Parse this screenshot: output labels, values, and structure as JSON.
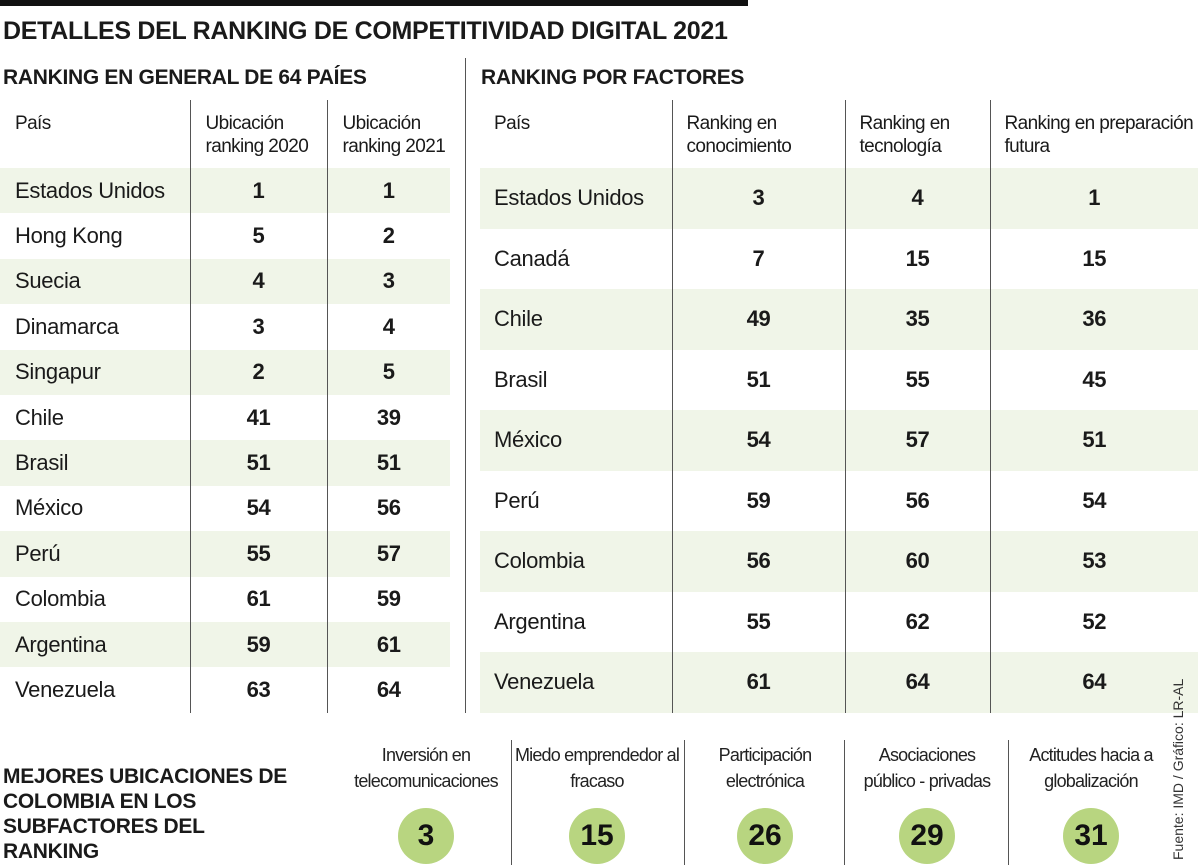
{
  "title": "DETALLES DEL RANKING DE COMPETITIVIDAD DIGITAL 2021",
  "general": {
    "title": "RANKING EN GENERAL DE 64 PAÍES",
    "headers": [
      "País",
      "Ubicación ranking 2020",
      "Ubicación ranking 2021"
    ],
    "rows": [
      [
        "Estados Unidos",
        "1",
        "1"
      ],
      [
        "Hong Kong",
        "5",
        "2"
      ],
      [
        "Suecia",
        "4",
        "3"
      ],
      [
        "Dinamarca",
        "3",
        "4"
      ],
      [
        "Singapur",
        "2",
        "5"
      ],
      [
        "Chile",
        "41",
        "39"
      ],
      [
        "Brasil",
        "51",
        "51"
      ],
      [
        "México",
        "54",
        "56"
      ],
      [
        "Perú",
        "55",
        "57"
      ],
      [
        "Colombia",
        "61",
        "59"
      ],
      [
        "Argentina",
        "59",
        "61"
      ],
      [
        "Venezuela",
        "63",
        "64"
      ]
    ]
  },
  "factores": {
    "title": "RANKING POR FACTORES",
    "headers": [
      "País",
      "Ranking en conocimiento",
      "Ranking en tecnología",
      "Ranking en preparación futura"
    ],
    "rows": [
      [
        "Estados Unidos",
        "3",
        "4",
        "1"
      ],
      [
        "Canadá",
        "7",
        "15",
        "15"
      ],
      [
        "Chile",
        "49",
        "35",
        "36"
      ],
      [
        "Brasil",
        "51",
        "55",
        "45"
      ],
      [
        "México",
        "54",
        "57",
        "51"
      ],
      [
        "Perú",
        "59",
        "56",
        "54"
      ],
      [
        "Colombia",
        "56",
        "60",
        "53"
      ],
      [
        "Argentina",
        "55",
        "62",
        "52"
      ],
      [
        "Venezuela",
        "61",
        "64",
        "64"
      ]
    ]
  },
  "subfactores": {
    "title": "MEJORES UBICACIONES DE COLOMBIA EN LOS SUBFACTORES DEL RANKING",
    "items": [
      {
        "label": "Inversión en telecomunicaciones",
        "value": "3"
      },
      {
        "label": "Miedo emprendedor al fracaso",
        "value": "15"
      },
      {
        "label": "Participación electrónica",
        "value": "26"
      },
      {
        "label": "Asociaciones público - privadas",
        "value": "29"
      },
      {
        "label": "Actitudes hacia a globalización",
        "value": "31"
      }
    ]
  },
  "credit": "Fuente: IMD / Gráfico: LR-AL",
  "colors": {
    "accent": "#b8d580",
    "row_shade": "#f0f5e8"
  }
}
